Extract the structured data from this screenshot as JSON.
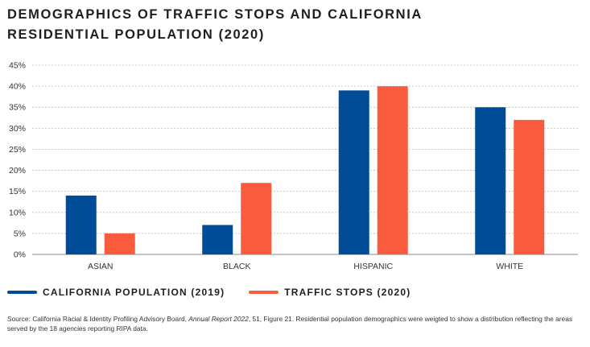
{
  "title": "DEMOGRAPHICS OF TRAFFIC STOPS AND CALIFORNIA RESIDENTIAL POPULATION (2020)",
  "colors": {
    "california": "#004C97",
    "traffic": "#FA5B3D",
    "grid": "#c8c8c8",
    "axis": "#888888"
  },
  "chart_data": {
    "type": "bar",
    "title": "DEMOGRAPHICS OF TRAFFIC STOPS AND CALIFORNIA RESIDENTIAL POPULATION (2020)",
    "categories": [
      "ASIAN",
      "BLACK",
      "HISPANIC",
      "WHITE"
    ],
    "series": [
      {
        "name": "CALIFORNIA POPULATION (2019)",
        "values": [
          14,
          7,
          39,
          35
        ],
        "color": "#004C97"
      },
      {
        "name": "TRAFFIC STOPS (2020)",
        "values": [
          5,
          17,
          40,
          32
        ],
        "color": "#FA5B3D"
      }
    ],
    "yticks": [
      "0%",
      "5%",
      "10%",
      "15%",
      "20%",
      "25%",
      "30%",
      "35%",
      "40%",
      "45%"
    ],
    "ylim": [
      0,
      45
    ],
    "xlabel": "",
    "ylabel": "",
    "grid": true,
    "legend_position": "bottom-left"
  },
  "source": {
    "prefix": "Source: California Racial & Identity Profiling Advisory Board, ",
    "italic": "Annual Report 2022",
    "suffix": ", 51, Figure 21. Residential population demographics were weigted to show a distribution reflecting the areas served by the 18 agencies reporting RIPA data."
  }
}
